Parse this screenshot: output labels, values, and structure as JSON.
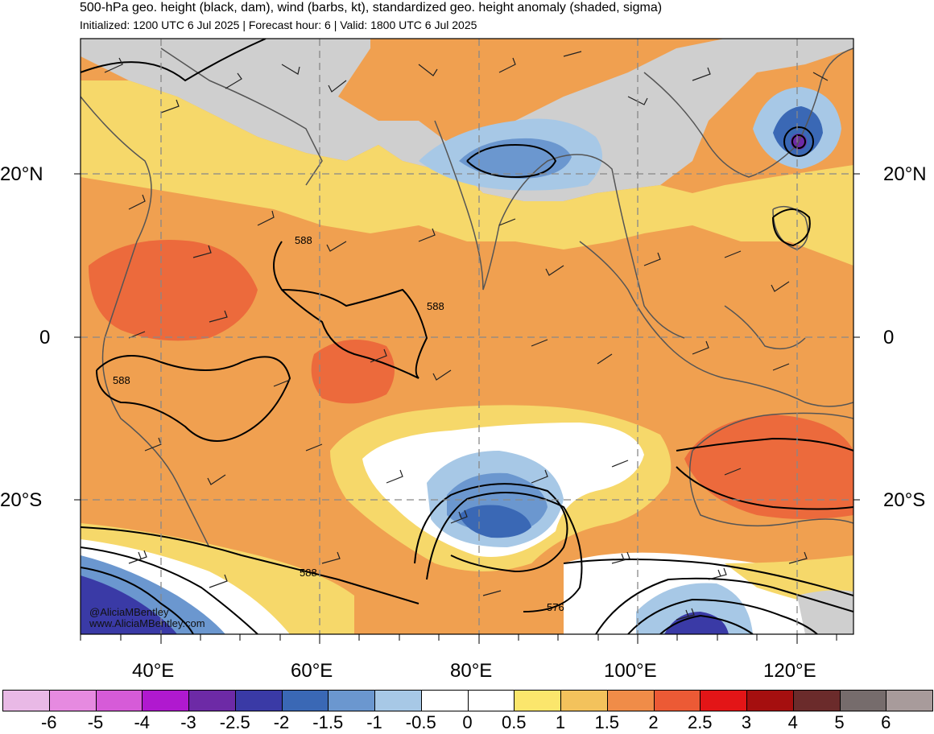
{
  "header": {
    "title": "500-hPa geo. height (black, dam), wind (barbs, kt), standardized geo. height anomaly (shaded, sigma)",
    "subtitle": "Initialized: 1200 UTC 6 Jul 2025 | Forecast hour: 6 | Valid: 1800 UTC 6 Jul 2025"
  },
  "map": {
    "lat_labels": [
      "20°N",
      "0",
      "20°S"
    ],
    "lon_labels": [
      "40°E",
      "60°E",
      "80°E",
      "100°E",
      "120°E"
    ],
    "contour_labels": [
      "588",
      "588",
      "588",
      "588",
      "576"
    ],
    "credit_handle": "@AliciaMBentley",
    "credit_site": "www.AliciaMBentley.com"
  },
  "colorbar": {
    "labels": [
      "-6",
      "-5",
      "-4",
      "-3",
      "-2.5",
      "-2",
      "-1.5",
      "-1",
      "-0.5",
      "0",
      "0.5",
      "1",
      "1.5",
      "2",
      "2.5",
      "3",
      "4",
      "5",
      "6"
    ],
    "colors": [
      "#e9b9e6",
      "#e68ae0",
      "#d65bd8",
      "#b019cf",
      "#6d2aa6",
      "#3a3aa6",
      "#3a68b5",
      "#6b97cf",
      "#a7c8e6",
      "#ffffff",
      "#ffffff",
      "#fbe66c",
      "#f3c25c",
      "#f08c48",
      "#ec5a35",
      "#e31517",
      "#a50f0f",
      "#6b2b2b",
      "#766c6c",
      "#a89b9b"
    ]
  }
}
